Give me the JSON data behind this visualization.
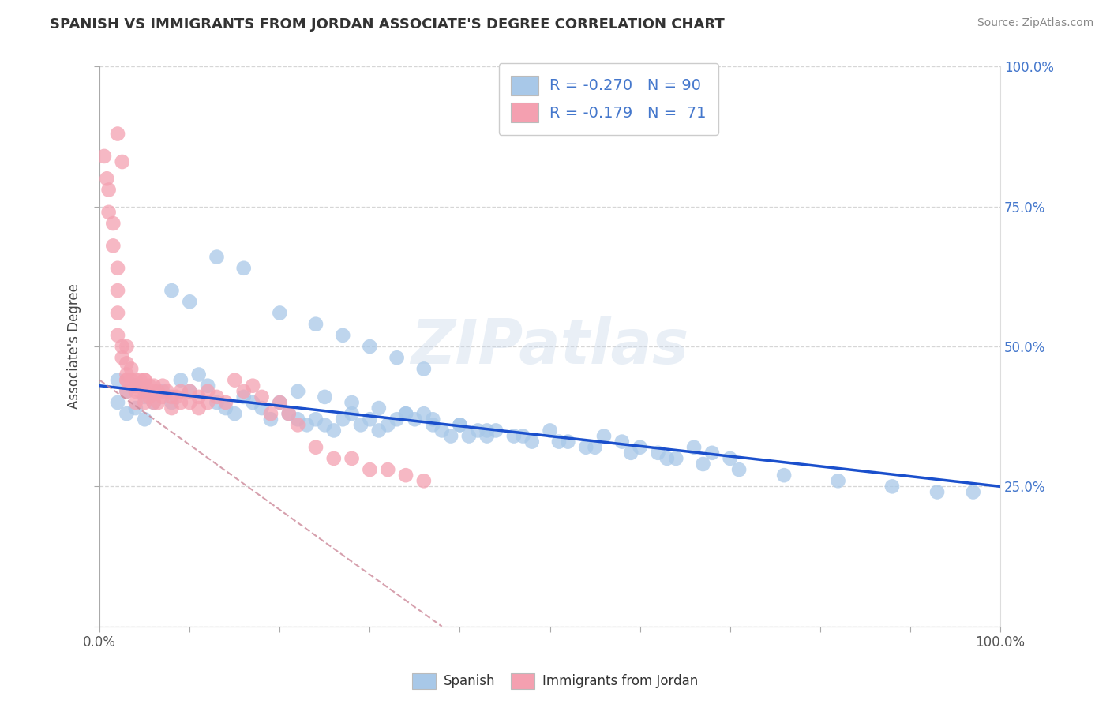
{
  "title": "SPANISH VS IMMIGRANTS FROM JORDAN ASSOCIATE'S DEGREE CORRELATION CHART",
  "source": "Source: ZipAtlas.com",
  "ylabel": "Associate's Degree",
  "watermark": "ZIPatlas",
  "blue_color": "#a8c8e8",
  "pink_color": "#f4a0b0",
  "line_blue": "#1a4fcc",
  "line_pink_color": "#cc8899",
  "xlim": [
    0.0,
    1.0
  ],
  "ylim": [
    0.0,
    1.0
  ],
  "x_ticks": [
    0.0,
    0.1,
    0.2,
    0.3,
    0.4,
    0.5,
    0.6,
    0.7,
    0.8,
    0.9,
    1.0
  ],
  "x_tick_labels": [
    "0.0%",
    "",
    "",
    "",
    "",
    "",
    "",
    "",
    "",
    "",
    "100.0%"
  ],
  "y_ticks": [
    0.0,
    0.25,
    0.5,
    0.75,
    1.0
  ],
  "y_tick_labels_right": [
    "",
    "25.0%",
    "50.0%",
    "75.0%",
    "100.0%"
  ],
  "blue_line_x": [
    0.0,
    1.0
  ],
  "blue_line_y": [
    0.43,
    0.25
  ],
  "pink_line_x": [
    0.0,
    0.38
  ],
  "pink_line_y": [
    0.44,
    0.0
  ],
  "background_color": "#ffffff",
  "grid_color": "#cccccc",
  "title_color": "#333333",
  "title_fontsize": 13,
  "right_tick_color": "#4477cc",
  "blue_scatter_x": [
    0.02,
    0.02,
    0.03,
    0.03,
    0.04,
    0.04,
    0.05,
    0.05,
    0.06,
    0.07,
    0.08,
    0.09,
    0.1,
    0.11,
    0.12,
    0.13,
    0.14,
    0.15,
    0.16,
    0.17,
    0.18,
    0.19,
    0.2,
    0.21,
    0.22,
    0.23,
    0.24,
    0.25,
    0.26,
    0.27,
    0.28,
    0.29,
    0.3,
    0.31,
    0.32,
    0.33,
    0.34,
    0.35,
    0.36,
    0.37,
    0.38,
    0.39,
    0.4,
    0.41,
    0.42,
    0.43,
    0.44,
    0.46,
    0.48,
    0.5,
    0.52,
    0.54,
    0.56,
    0.58,
    0.6,
    0.62,
    0.64,
    0.66,
    0.68,
    0.7,
    0.22,
    0.25,
    0.28,
    0.31,
    0.34,
    0.37,
    0.4,
    0.43,
    0.47,
    0.51,
    0.55,
    0.59,
    0.63,
    0.67,
    0.71,
    0.76,
    0.82,
    0.88,
    0.93,
    0.97,
    0.08,
    0.1,
    0.13,
    0.16,
    0.2,
    0.24,
    0.27,
    0.3,
    0.33,
    0.36
  ],
  "blue_scatter_y": [
    0.44,
    0.4,
    0.42,
    0.38,
    0.43,
    0.39,
    0.41,
    0.37,
    0.4,
    0.42,
    0.4,
    0.44,
    0.42,
    0.45,
    0.43,
    0.4,
    0.39,
    0.38,
    0.41,
    0.4,
    0.39,
    0.37,
    0.4,
    0.38,
    0.37,
    0.36,
    0.37,
    0.36,
    0.35,
    0.37,
    0.38,
    0.36,
    0.37,
    0.35,
    0.36,
    0.37,
    0.38,
    0.37,
    0.38,
    0.36,
    0.35,
    0.34,
    0.36,
    0.34,
    0.35,
    0.34,
    0.35,
    0.34,
    0.33,
    0.35,
    0.33,
    0.32,
    0.34,
    0.33,
    0.32,
    0.31,
    0.3,
    0.32,
    0.31,
    0.3,
    0.42,
    0.41,
    0.4,
    0.39,
    0.38,
    0.37,
    0.36,
    0.35,
    0.34,
    0.33,
    0.32,
    0.31,
    0.3,
    0.29,
    0.28,
    0.27,
    0.26,
    0.25,
    0.24,
    0.24,
    0.6,
    0.58,
    0.66,
    0.64,
    0.56,
    0.54,
    0.52,
    0.5,
    0.48,
    0.46
  ],
  "pink_scatter_x": [
    0.005,
    0.008,
    0.01,
    0.01,
    0.015,
    0.015,
    0.02,
    0.02,
    0.02,
    0.02,
    0.025,
    0.025,
    0.03,
    0.03,
    0.03,
    0.03,
    0.03,
    0.035,
    0.035,
    0.04,
    0.04,
    0.04,
    0.04,
    0.045,
    0.045,
    0.05,
    0.05,
    0.05,
    0.055,
    0.055,
    0.06,
    0.06,
    0.065,
    0.065,
    0.07,
    0.07,
    0.075,
    0.08,
    0.08,
    0.085,
    0.09,
    0.09,
    0.1,
    0.1,
    0.11,
    0.11,
    0.12,
    0.12,
    0.13,
    0.14,
    0.15,
    0.16,
    0.17,
    0.18,
    0.19,
    0.2,
    0.21,
    0.22,
    0.24,
    0.26,
    0.28,
    0.3,
    0.32,
    0.34,
    0.36,
    0.03,
    0.04,
    0.05,
    0.06,
    0.02,
    0.025
  ],
  "pink_scatter_y": [
    0.84,
    0.8,
    0.78,
    0.74,
    0.72,
    0.68,
    0.64,
    0.6,
    0.56,
    0.52,
    0.5,
    0.48,
    0.5,
    0.47,
    0.45,
    0.44,
    0.42,
    0.46,
    0.44,
    0.44,
    0.43,
    0.42,
    0.4,
    0.44,
    0.42,
    0.44,
    0.42,
    0.4,
    0.43,
    0.41,
    0.42,
    0.4,
    0.42,
    0.4,
    0.43,
    0.41,
    0.42,
    0.41,
    0.39,
    0.41,
    0.42,
    0.4,
    0.42,
    0.4,
    0.41,
    0.39,
    0.42,
    0.4,
    0.41,
    0.4,
    0.44,
    0.42,
    0.43,
    0.41,
    0.38,
    0.4,
    0.38,
    0.36,
    0.32,
    0.3,
    0.3,
    0.28,
    0.28,
    0.27,
    0.26,
    0.44,
    0.43,
    0.44,
    0.43,
    0.88,
    0.83
  ]
}
